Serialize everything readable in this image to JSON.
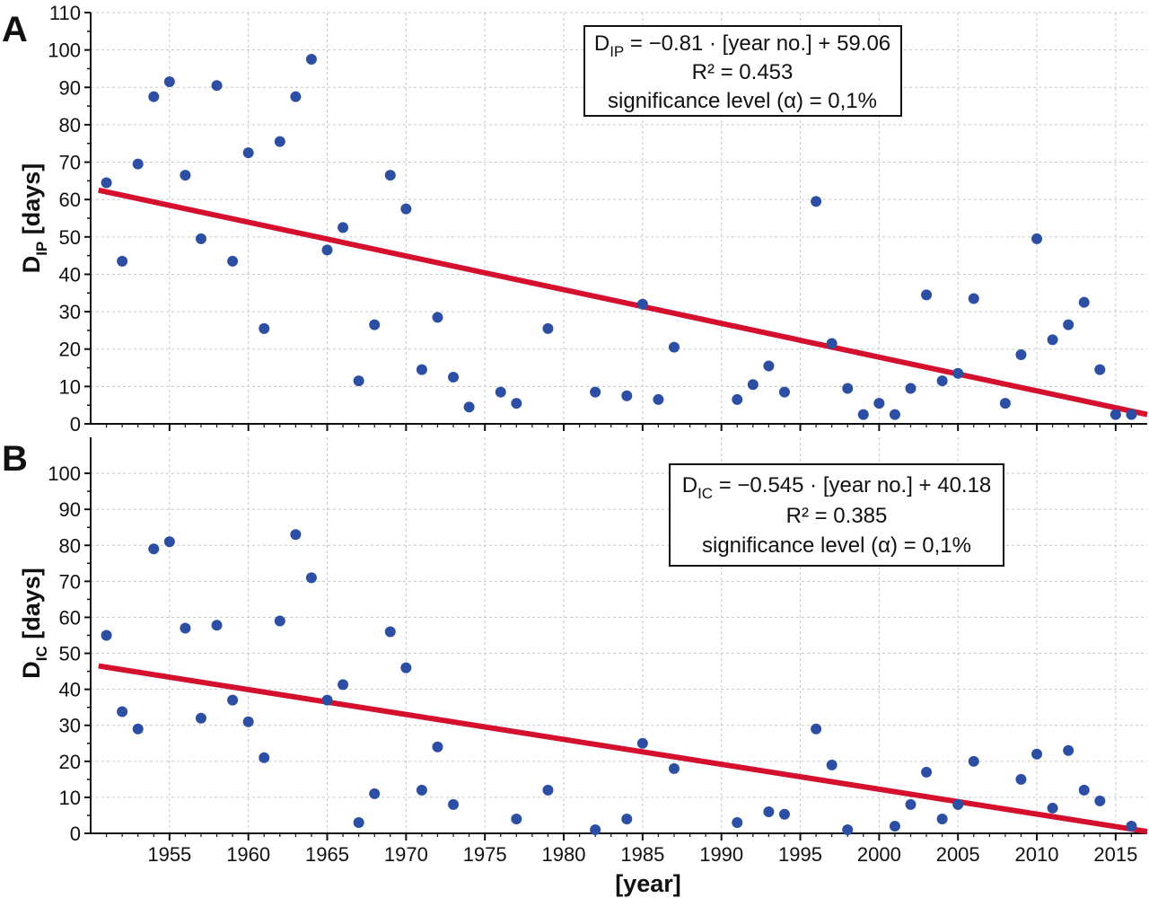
{
  "colors": {
    "points": "#2c4fa3",
    "trend": "#d5102f",
    "grid": "#c8c8c8",
    "axis": "#111111"
  },
  "shared_x": {
    "label": "[year]",
    "range": [
      1950,
      2017
    ],
    "ticks": [
      1955,
      1960,
      1965,
      1970,
      1975,
      1980,
      1985,
      1990,
      1995,
      2000,
      2005,
      2010,
      2015
    ]
  },
  "chart_data": [
    {
      "type": "scatter",
      "panel": "A",
      "title": "",
      "xlabel": "[year]",
      "ylabel": {
        "main": "D",
        "sub": "IP",
        "rest": " [days]"
      },
      "xlim": [
        1950,
        2017
      ],
      "ylim": [
        0,
        110
      ],
      "yticks": [
        0,
        10,
        20,
        30,
        40,
        50,
        60,
        70,
        80,
        90,
        100,
        110
      ],
      "grid": true,
      "series": [
        {
          "name": "D_IP",
          "points": [
            [
              1951,
              64.5
            ],
            [
              1952,
              43.5
            ],
            [
              1953,
              69.5
            ],
            [
              1954,
              87.5
            ],
            [
              1955,
              91.5
            ],
            [
              1956,
              66.5
            ],
            [
              1957,
              49.5
            ],
            [
              1958,
              90.5
            ],
            [
              1959,
              43.5
            ],
            [
              1960,
              72.5
            ],
            [
              1961,
              25.5
            ],
            [
              1962,
              75.5
            ],
            [
              1963,
              87.5
            ],
            [
              1964,
              97.5
            ],
            [
              1965,
              46.5
            ],
            [
              1966,
              52.5
            ],
            [
              1967,
              11.5
            ],
            [
              1968,
              26.5
            ],
            [
              1969,
              66.5
            ],
            [
              1970,
              57.5
            ],
            [
              1971,
              14.5
            ],
            [
              1972,
              28.5
            ],
            [
              1973,
              12.5
            ],
            [
              1974,
              4.5
            ],
            [
              1976,
              8.5
            ],
            [
              1977,
              5.5
            ],
            [
              1979,
              25.5
            ],
            [
              1982,
              8.5
            ],
            [
              1984,
              7.5
            ],
            [
              1985,
              32
            ],
            [
              1986,
              6.5
            ],
            [
              1987,
              20.5
            ],
            [
              1991,
              6.5
            ],
            [
              1992,
              10.5
            ],
            [
              1993,
              15.5
            ],
            [
              1994,
              8.5
            ],
            [
              1996,
              59.5
            ],
            [
              1997,
              21.5
            ],
            [
              1998,
              9.5
            ],
            [
              1999,
              2.5
            ],
            [
              2000,
              5.5
            ],
            [
              2001,
              2.5
            ],
            [
              2002,
              9.5
            ],
            [
              2003,
              34.5
            ],
            [
              2004,
              11.5
            ],
            [
              2005,
              13.5
            ],
            [
              2006,
              33.5
            ],
            [
              2008,
              5.5
            ],
            [
              2009,
              18.5
            ],
            [
              2010,
              49.5
            ],
            [
              2011,
              22.5
            ],
            [
              2012,
              26.5
            ],
            [
              2013,
              32.5
            ],
            [
              2014,
              14.5
            ],
            [
              2015,
              2.5
            ],
            [
              2016,
              2.5
            ]
          ]
        }
      ],
      "trendline": {
        "x": [
          1950.5,
          2017
        ],
        "y": [
          62.5,
          2.5
        ]
      },
      "annotation": {
        "line1_prefix": "D",
        "line1_sub": "IP",
        "line1_rest": " = −0.81 · [year no.] + 59.06",
        "line2": "R² = 0.453",
        "line3": "significance level (α) = 0,1%"
      }
    },
    {
      "type": "scatter",
      "panel": "B",
      "title": "",
      "xlabel": "[year]",
      "ylabel": {
        "main": "D",
        "sub": "IC",
        "rest": " [days]"
      },
      "xlim": [
        1950,
        2017
      ],
      "ylim": [
        0,
        110
      ],
      "yticks": [
        0,
        10,
        20,
        30,
        40,
        50,
        60,
        70,
        80,
        90,
        100
      ],
      "grid": true,
      "series": [
        {
          "name": "D_IC",
          "points": [
            [
              1951,
              55
            ],
            [
              1952,
              33.8
            ],
            [
              1953,
              29
            ],
            [
              1954,
              79
            ],
            [
              1955,
              81
            ],
            [
              1956,
              57
            ],
            [
              1957,
              32
            ],
            [
              1958,
              57.8
            ],
            [
              1959,
              37
            ],
            [
              1960,
              31
            ],
            [
              1961,
              21
            ],
            [
              1962,
              59
            ],
            [
              1963,
              83
            ],
            [
              1964,
              71
            ],
            [
              1965,
              37
            ],
            [
              1966,
              41.3
            ],
            [
              1967,
              3
            ],
            [
              1968,
              11
            ],
            [
              1969,
              56
            ],
            [
              1970,
              46
            ],
            [
              1971,
              12
            ],
            [
              1972,
              24
            ],
            [
              1973,
              8
            ],
            [
              1977,
              4
            ],
            [
              1979,
              12
            ],
            [
              1982,
              1
            ],
            [
              1984,
              4
            ],
            [
              1985,
              25
            ],
            [
              1987,
              18
            ],
            [
              1991,
              3
            ],
            [
              1993,
              6
            ],
            [
              1994,
              5.3
            ],
            [
              1996,
              29
            ],
            [
              1997,
              19
            ],
            [
              1998,
              1
            ],
            [
              2001,
              2
            ],
            [
              2002,
              8
            ],
            [
              2003,
              17
            ],
            [
              2004,
              4
            ],
            [
              2005,
              8
            ],
            [
              2006,
              20
            ],
            [
              2009,
              15
            ],
            [
              2010,
              22
            ],
            [
              2011,
              7
            ],
            [
              2012,
              23
            ],
            [
              2013,
              12
            ],
            [
              2014,
              9
            ],
            [
              2016,
              2
            ]
          ]
        }
      ],
      "trendline": {
        "x": [
          1950.5,
          2017
        ],
        "y": [
          46.5,
          0.5
        ]
      },
      "annotation": {
        "line1_prefix": "D",
        "line1_sub": "IC",
        "line1_rest": " = −0.545 · [year no.] + 40.18",
        "line2": "R² = 0.385",
        "line3": "significance level (α) = 0,1%"
      }
    }
  ]
}
